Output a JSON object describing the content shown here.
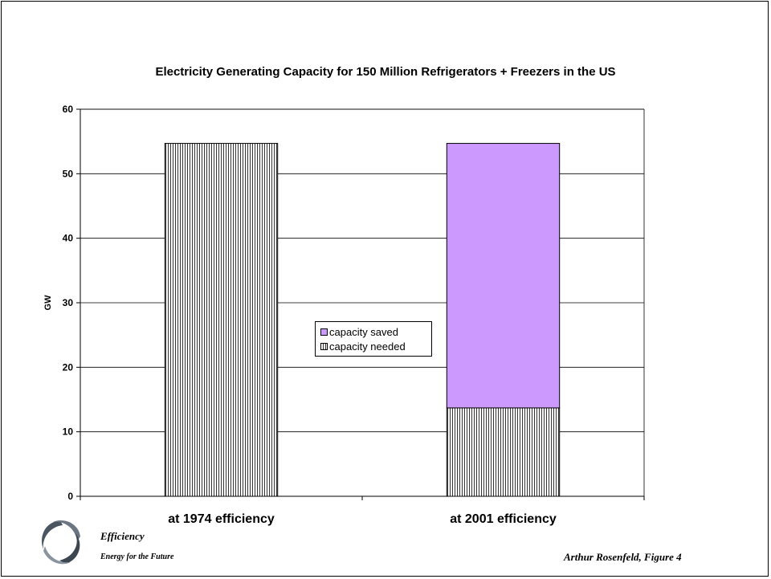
{
  "colors": {
    "saved": "#cc99ff",
    "needed": "#ffffff",
    "hatch": "#000000"
  },
  "chart_data": {
    "type": "bar",
    "stacked": true,
    "title": "Electricity Generating Capacity for 150 Million Refrigerators + Freezers in the US",
    "ylabel": "GW",
    "xlabel": "",
    "ylim": [
      0,
      60
    ],
    "yticks": [
      "0",
      "10",
      "20",
      "30",
      "40",
      "50",
      "60"
    ],
    "grid": true,
    "legend_position": "center",
    "categories": [
      "at 1974 efficiency",
      "at 2001 efficiency"
    ],
    "series": [
      {
        "name": "capacity needed",
        "values": [
          54.7,
          13.7
        ]
      },
      {
        "name": "capacity saved",
        "values": [
          0,
          41.0
        ]
      }
    ]
  },
  "legend": {
    "saved": "capacity saved",
    "needed": "capacity needed"
  },
  "footer": {
    "title": "Efficiency",
    "subtitle": "Energy for the Future",
    "credit": "Arthur Rosenfeld, Figure 4"
  },
  "logo_icon": "swirl-logo-icon"
}
